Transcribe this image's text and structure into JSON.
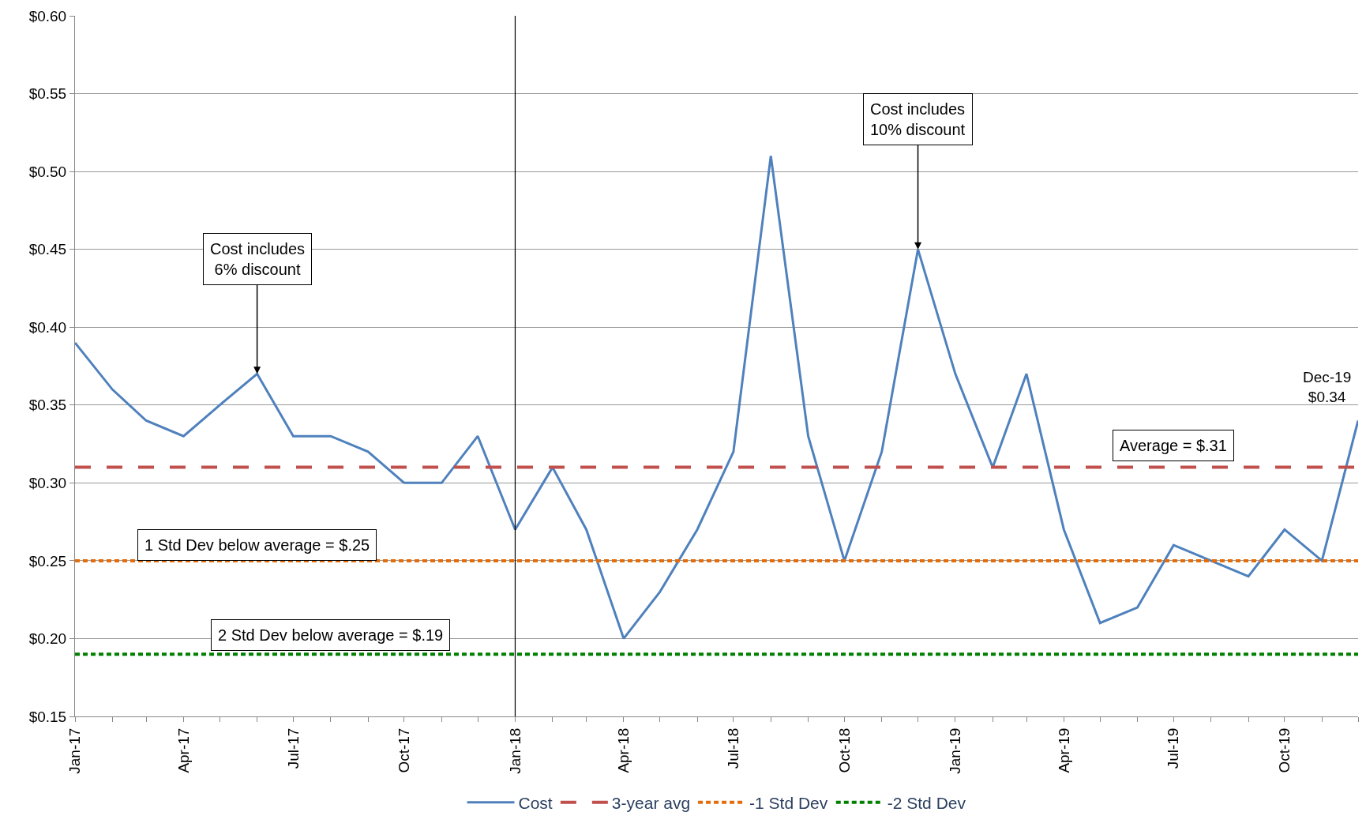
{
  "chart_data": {
    "type": "line",
    "x": [
      "2017-01",
      "2017-02",
      "2017-03",
      "2017-04",
      "2017-05",
      "2017-06",
      "2017-07",
      "2017-08",
      "2017-09",
      "2017-10",
      "2017-11",
      "2017-12",
      "2018-01",
      "2018-02",
      "2018-03",
      "2018-04",
      "2018-05",
      "2018-06",
      "2018-07",
      "2018-08",
      "2018-09",
      "2018-10",
      "2018-11",
      "2018-12",
      "2019-01",
      "2019-02",
      "2019-03",
      "2019-04",
      "2019-05",
      "2019-06",
      "2019-07",
      "2019-08",
      "2019-09",
      "2019-10",
      "2019-11",
      "2019-12"
    ],
    "series": [
      {
        "name": "Cost",
        "color": "#4f81bd",
        "line_style": "solid",
        "values": [
          0.39,
          0.36,
          0.34,
          0.33,
          0.35,
          0.37,
          0.33,
          0.33,
          0.32,
          0.3,
          0.3,
          0.33,
          0.27,
          0.31,
          0.27,
          0.2,
          0.23,
          0.27,
          0.32,
          0.51,
          0.33,
          0.25,
          0.32,
          0.45,
          0.37,
          0.31,
          0.37,
          0.27,
          0.21,
          0.22,
          0.26,
          0.25,
          0.24,
          0.27,
          0.25,
          0.34
        ]
      },
      {
        "name": "3-year avg",
        "color": "#c0504d",
        "line_style": "dashed",
        "values": [
          0.31,
          0.31,
          0.31,
          0.31,
          0.31,
          0.31,
          0.31,
          0.31,
          0.31,
          0.31,
          0.31,
          0.31,
          0.31,
          0.31,
          0.31,
          0.31,
          0.31,
          0.31,
          0.31,
          0.31,
          0.31,
          0.31,
          0.31,
          0.31,
          0.31,
          0.31,
          0.31,
          0.31,
          0.31,
          0.31,
          0.31,
          0.31,
          0.31,
          0.31,
          0.31,
          0.31
        ]
      },
      {
        "name": "-1 Std Dev",
        "color": "#e46c0a",
        "line_style": "dotted",
        "values": [
          0.25,
          0.25,
          0.25,
          0.25,
          0.25,
          0.25,
          0.25,
          0.25,
          0.25,
          0.25,
          0.25,
          0.25,
          0.25,
          0.25,
          0.25,
          0.25,
          0.25,
          0.25,
          0.25,
          0.25,
          0.25,
          0.25,
          0.25,
          0.25,
          0.25,
          0.25,
          0.25,
          0.25,
          0.25,
          0.25,
          0.25,
          0.25,
          0.25,
          0.25,
          0.25,
          0.25
        ]
      },
      {
        "name": "-2 Std Dev",
        "color": "#008000",
        "line_style": "dotted",
        "values": [
          0.19,
          0.19,
          0.19,
          0.19,
          0.19,
          0.19,
          0.19,
          0.19,
          0.19,
          0.19,
          0.19,
          0.19,
          0.19,
          0.19,
          0.19,
          0.19,
          0.19,
          0.19,
          0.19,
          0.19,
          0.19,
          0.19,
          0.19,
          0.19,
          0.19,
          0.19,
          0.19,
          0.19,
          0.19,
          0.19,
          0.19,
          0.19,
          0.19,
          0.19,
          0.19,
          0.19
        ]
      }
    ],
    "xlim": [
      "2017-01",
      "2019-12"
    ],
    "xticks": [
      {
        "value": "2017-01",
        "label": "Jan-17"
      },
      {
        "value": "2017-02",
        "label": null
      },
      {
        "value": "2017-03",
        "label": null
      },
      {
        "value": "2017-04",
        "label": "Apr-17"
      },
      {
        "value": "2017-05",
        "label": null
      },
      {
        "value": "2017-06",
        "label": null
      },
      {
        "value": "2017-07",
        "label": "Jul-17"
      },
      {
        "value": "2017-08",
        "label": null
      },
      {
        "value": "2017-09",
        "label": null
      },
      {
        "value": "2017-10",
        "label": "Oct-17"
      },
      {
        "value": "2017-11",
        "label": null
      },
      {
        "value": "2017-12",
        "label": null
      },
      {
        "value": "2018-01",
        "label": "Jan-18"
      },
      {
        "value": "2018-02",
        "label": null
      },
      {
        "value": "2018-03",
        "label": null
      },
      {
        "value": "2018-04",
        "label": "Apr-18"
      },
      {
        "value": "2018-05",
        "label": null
      },
      {
        "value": "2018-06",
        "label": null
      },
      {
        "value": "2018-07",
        "label": "Jul-18"
      },
      {
        "value": "2018-08",
        "label": null
      },
      {
        "value": "2018-09",
        "label": null
      },
      {
        "value": "2018-10",
        "label": "Oct-18"
      },
      {
        "value": "2018-11",
        "label": null
      },
      {
        "value": "2018-12",
        "label": null
      },
      {
        "value": "2019-01",
        "label": "Jan-19"
      },
      {
        "value": "2019-02",
        "label": null
      },
      {
        "value": "2019-03",
        "label": null
      },
      {
        "value": "2019-04",
        "label": "Apr-19"
      },
      {
        "value": "2019-05",
        "label": null
      },
      {
        "value": "2019-06",
        "label": null
      },
      {
        "value": "2019-07",
        "label": "Jul-19"
      },
      {
        "value": "2019-08",
        "label": null
      },
      {
        "value": "2019-09",
        "label": null
      },
      {
        "value": "2019-10",
        "label": "Oct-19"
      },
      {
        "value": "2019-11",
        "label": null
      },
      {
        "value": "2019-12",
        "label": null
      }
    ],
    "ylim": [
      0.15,
      0.6
    ],
    "yticks": [
      {
        "value": 0.15,
        "label": "$0.15"
      },
      {
        "value": 0.2,
        "label": "$0.20"
      },
      {
        "value": 0.25,
        "label": "$0.25"
      },
      {
        "value": 0.3,
        "label": "$0.30"
      },
      {
        "value": 0.35,
        "label": "$0.35"
      },
      {
        "value": 0.4,
        "label": "$0.40"
      },
      {
        "value": 0.45,
        "label": "$0.45"
      },
      {
        "value": 0.5,
        "label": "$0.50"
      },
      {
        "value": 0.55,
        "label": "$0.55"
      },
      {
        "value": 0.6,
        "label": "$0.60"
      }
    ],
    "grid": "y",
    "legend": "bottom",
    "marker": "none",
    "ref_lines": [
      {
        "axis": "x",
        "value": "2018-01",
        "color": "#000000",
        "line_style": "solid"
      }
    ],
    "annotations": [
      {
        "text": "Cost includes\n6% discount",
        "x": "2017-06",
        "y": 0.37
      },
      {
        "text": "Cost includes\n10% discount",
        "x": "2018-12",
        "y": 0.45
      },
      {
        "text": "Dec-19\n$0.34",
        "x": "2019-12",
        "y": 0.34
      },
      {
        "text": "Average = $.31",
        "x": "2019-07",
        "y": 0.31
      },
      {
        "text": "1 Std Dev below average = $.25",
        "x": "2017-06",
        "y": 0.25
      },
      {
        "text": "2 Std Dev below average = $.19",
        "x": "2017-08",
        "y": 0.19
      }
    ]
  }
}
